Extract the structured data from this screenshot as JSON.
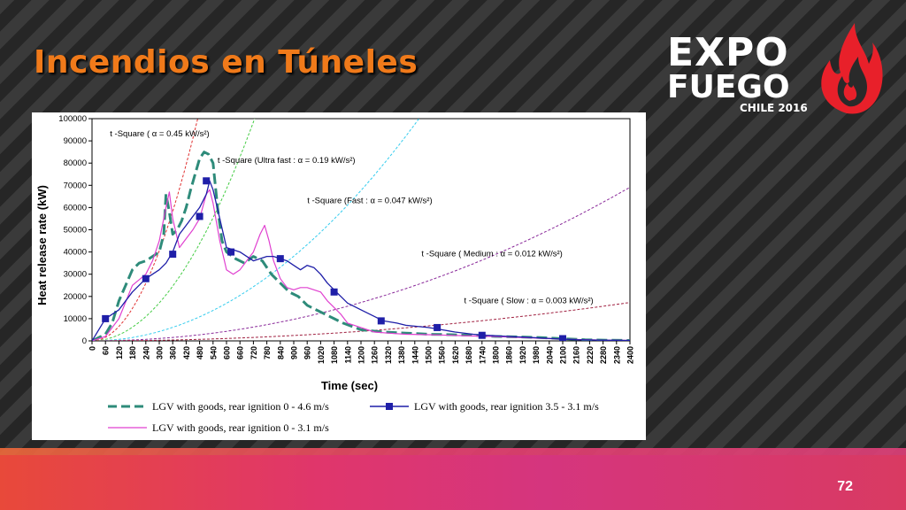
{
  "slide": {
    "title": "Incendios en Túneles",
    "page_number": "72",
    "logo": {
      "line1": "EXPO",
      "line2": "FUEGO",
      "line3": "CHILE 2016",
      "icon": "flame-icon"
    }
  },
  "colors": {
    "title": "#f07a1a",
    "green_series": "#2e8b7a",
    "blue_series": "#1f1fa8",
    "magenta_series": "#e040d0",
    "curve_045": "#e03030",
    "curve_019": "#44cc44",
    "curve_047": "#33ccee",
    "curve_012": "#8a2a9a",
    "curve_003": "#a02040"
  },
  "chart_data": {
    "type": "line",
    "xlabel": "Time (sec)",
    "ylabel": "Heat release rate  (kW)",
    "xlim": [
      0,
      2400
    ],
    "ylim": [
      0,
      100000
    ],
    "x_ticks": [
      0,
      60,
      120,
      180,
      240,
      300,
      360,
      420,
      480,
      540,
      600,
      660,
      720,
      780,
      840,
      900,
      960,
      1020,
      1080,
      1140,
      1200,
      1260,
      1320,
      1380,
      1440,
      1500,
      1560,
      1620,
      1680,
      1740,
      1800,
      1860,
      1920,
      1980,
      2040,
      2100,
      2160,
      2220,
      2280,
      2340,
      2400
    ],
    "y_ticks": [
      0,
      10000,
      20000,
      30000,
      40000,
      50000,
      60000,
      70000,
      80000,
      90000,
      100000
    ],
    "series": [
      {
        "name": "LGV with goods, rear ignition  0 - 4.6 m/s",
        "style": "dashed-thick",
        "x": [
          0,
          60,
          90,
          120,
          150,
          180,
          210,
          240,
          270,
          300,
          320,
          330,
          345,
          360,
          380,
          400,
          420,
          440,
          460,
          480,
          500,
          520,
          540,
          560,
          580,
          600,
          640,
          680,
          720,
          760,
          800,
          840,
          880,
          920,
          960,
          1000,
          1040,
          1080,
          1120,
          1200,
          1300,
          1400,
          1500,
          1600,
          1700,
          1800,
          1900,
          2000,
          2100,
          2200,
          2300,
          2400
        ],
        "y": [
          0,
          3000,
          8000,
          18000,
          25000,
          32000,
          35000,
          36000,
          38000,
          40000,
          48000,
          66000,
          58000,
          48000,
          50000,
          54000,
          60000,
          68000,
          75000,
          82000,
          85000,
          84000,
          80000,
          60000,
          45000,
          40000,
          37000,
          35000,
          38000,
          36000,
          30000,
          26000,
          22000,
          20000,
          16000,
          14000,
          12000,
          10000,
          8000,
          5000,
          4000,
          3500,
          3000,
          2800,
          2500,
          2000,
          1800,
          1500,
          1000,
          500,
          300,
          200
        ]
      },
      {
        "name": "LGV with goods, rear ignition  0 - 3.1 m/s",
        "style": "solid-thin",
        "x": [
          0,
          60,
          120,
          180,
          240,
          270,
          300,
          330,
          345,
          360,
          390,
          420,
          450,
          480,
          510,
          525,
          540,
          570,
          600,
          630,
          660,
          690,
          720,
          750,
          770,
          790,
          810,
          840,
          870,
          900,
          930,
          960,
          990,
          1020,
          1050,
          1080,
          1110,
          1140,
          1200,
          1260,
          1320,
          1400,
          1500,
          1600,
          1700,
          1800,
          1900,
          2000,
          2100,
          2200,
          2300,
          2400
        ],
        "y": [
          0,
          2000,
          10000,
          25000,
          30000,
          36000,
          45000,
          60000,
          67000,
          55000,
          42000,
          46000,
          50000,
          55000,
          66000,
          68000,
          62000,
          45000,
          32000,
          30000,
          32000,
          36000,
          40000,
          48000,
          52000,
          45000,
          36000,
          28000,
          24000,
          23000,
          24000,
          24000,
          23000,
          22000,
          18000,
          15000,
          12000,
          8000,
          6000,
          4000,
          3500,
          3000,
          2800,
          2500,
          2200,
          2000,
          1600,
          1200,
          800,
          500,
          300,
          200
        ]
      },
      {
        "name": "LGV with goods, rear ignition 3.5 - 3.1 m/s",
        "style": "solid-markers",
        "x": [
          0,
          60,
          90,
          120,
          180,
          240,
          300,
          330,
          360,
          390,
          420,
          450,
          480,
          510,
          525,
          540,
          570,
          600,
          630,
          660,
          690,
          720,
          750,
          780,
          810,
          840,
          870,
          900,
          930,
          960,
          990,
          1020,
          1050,
          1080,
          1110,
          1140,
          1200,
          1260,
          1300,
          1360,
          1400,
          1500,
          1560,
          1620,
          1700,
          1760,
          1860,
          1960,
          2060,
          2160,
          2260,
          2400
        ],
        "y": [
          0,
          10000,
          12000,
          14000,
          22000,
          28000,
          32000,
          35000,
          40000,
          48000,
          52000,
          56000,
          60000,
          66000,
          72000,
          68000,
          55000,
          42000,
          41000,
          40000,
          38000,
          36000,
          37000,
          38000,
          38000,
          37000,
          36000,
          34000,
          32000,
          34000,
          33000,
          30000,
          26000,
          23000,
          20000,
          17000,
          14000,
          11000,
          9000,
          8000,
          7000,
          6000,
          5000,
          4000,
          3000,
          2500,
          2000,
          1500,
          1000,
          500,
          300,
          200
        ],
        "marker_x": [
          60,
          240,
          360,
          480,
          510,
          620,
          840,
          1080,
          1290,
          1540,
          1740,
          2100
        ],
        "marker_y": [
          10000,
          28000,
          39000,
          56000,
          72000,
          40000,
          37000,
          22000,
          9000,
          6000,
          2500,
          1000
        ]
      }
    ],
    "t_square_curves": [
      {
        "label": "t -Square ( α = 0.45 kW/s²)",
        "alpha": 0.45
      },
      {
        "label": "t -Square (Ultra fast : α = 0.19 kW/s²)",
        "alpha": 0.19
      },
      {
        "label": "t -Square (Fast : α = 0.047 kW/s²)",
        "alpha": 0.047
      },
      {
        "label": "t -Square ( Medium : α = 0.012 kW/s²)",
        "alpha": 0.012
      },
      {
        "label": "t -Square ( Slow : α = 0.003 kW/s²)",
        "alpha": 0.003
      }
    ]
  }
}
